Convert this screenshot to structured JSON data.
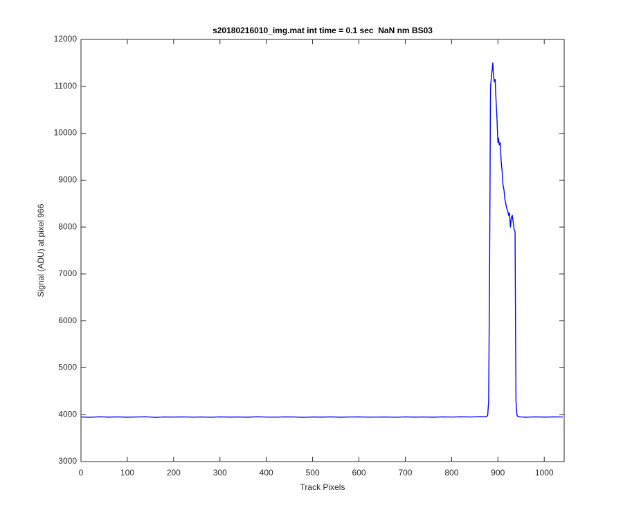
{
  "chart_data": {
    "type": "line",
    "title": "s20180216010_img.mat int time = 0.1 sec  NaN nm BS03",
    "x_label": "Track Pixels",
    "y_label": "Signal (ADU) at pixel 966",
    "x": [
      0,
      20,
      40,
      60,
      80,
      100,
      120,
      140,
      160,
      180,
      200,
      220,
      240,
      260,
      280,
      300,
      320,
      340,
      360,
      380,
      400,
      420,
      440,
      460,
      480,
      500,
      520,
      540,
      560,
      580,
      600,
      620,
      640,
      660,
      680,
      700,
      720,
      740,
      760,
      780,
      800,
      820,
      840,
      860,
      870,
      876,
      878,
      880,
      882,
      884,
      886,
      888,
      889,
      890,
      892,
      894,
      896,
      898,
      900,
      901,
      903,
      905,
      907,
      909,
      911,
      913,
      915,
      917,
      919,
      921,
      923,
      925,
      927,
      929,
      931,
      933,
      935,
      937,
      938,
      939,
      941,
      943,
      950,
      960,
      980,
      1000,
      1020,
      1040
    ],
    "series": [
      {
        "name": "signal",
        "color": "#0000ff",
        "values": [
          3950,
          3945,
          3955,
          3948,
          3952,
          3946,
          3950,
          3955,
          3944,
          3951,
          3949,
          3953,
          3947,
          3950,
          3945,
          3952,
          3948,
          3951,
          3946,
          3954,
          3949,
          3947,
          3952,
          3950,
          3944,
          3951,
          3948,
          3953,
          3946,
          3950,
          3952,
          3947,
          3949,
          3951,
          3945,
          3953,
          3948,
          3950,
          3946,
          3952,
          3949,
          3954,
          3951,
          3956,
          3955,
          3960,
          3990,
          4300,
          7000,
          11000,
          11200,
          11400,
          11500,
          11300,
          11100,
          11150,
          10700,
          10300,
          9800,
          9900,
          9750,
          9800,
          9400,
          9200,
          8900,
          8800,
          8600,
          8500,
          8400,
          8350,
          8250,
          8300,
          8000,
          8200,
          8250,
          8100,
          7950,
          7900,
          6000,
          4300,
          4000,
          3960,
          3950,
          3946,
          3952,
          3948,
          3953,
          3950
        ]
      }
    ],
    "xlim": [
      0,
      1043
    ],
    "ylim": [
      3000,
      12000
    ],
    "xticks": [
      0,
      100,
      200,
      300,
      400,
      500,
      600,
      700,
      800,
      900,
      1000
    ],
    "yticks": [
      3000,
      4000,
      5000,
      6000,
      7000,
      8000,
      9000,
      10000,
      11000,
      12000
    ]
  }
}
